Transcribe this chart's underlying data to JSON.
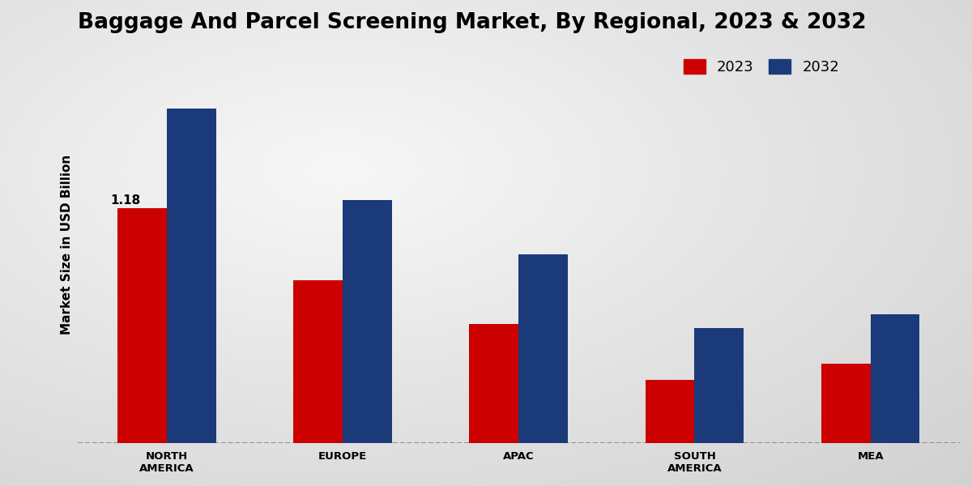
{
  "title": "Baggage And Parcel Screening Market, By Regional, 2023 & 2032",
  "ylabel": "Market Size in USD Billion",
  "categories": [
    "NORTH\nAMERICA",
    "EUROPE",
    "APAC",
    "SOUTH\nAMERICA",
    "MEA"
  ],
  "values_2023": [
    1.18,
    0.82,
    0.6,
    0.32,
    0.4
  ],
  "values_2032": [
    1.68,
    1.22,
    0.95,
    0.58,
    0.65
  ],
  "color_2023": "#cc0000",
  "color_2032": "#1a3a7a",
  "annotation_label": "1.18",
  "background_color_light": "#f0f0f0",
  "background_color_dark": "#d0d0d0",
  "legend_labels": [
    "2023",
    "2032"
  ],
  "bar_width": 0.28,
  "ylim": [
    0,
    2.0
  ],
  "title_fontsize": 19,
  "label_fontsize": 11,
  "tick_fontsize": 9.5,
  "legend_fontsize": 13
}
